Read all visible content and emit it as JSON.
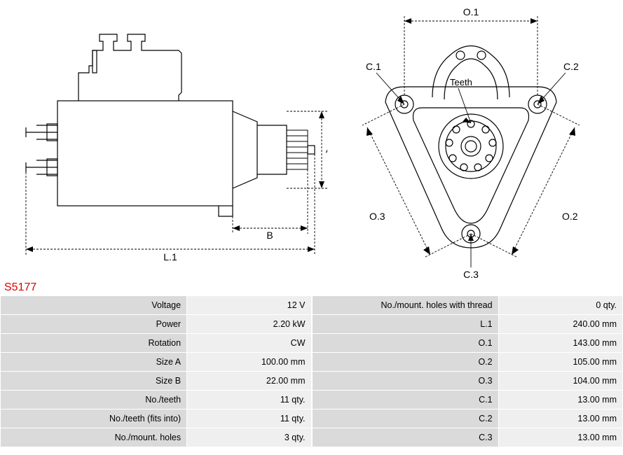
{
  "part_number": "S5177",
  "diagram_labels": {
    "A": "A",
    "B": "B",
    "L1": "L.1",
    "O1": "O.1",
    "O2": "O.2",
    "O3": "O.3",
    "C1": "C.1",
    "C2": "C.2",
    "C3": "C.3",
    "Teeth": "Teeth"
  },
  "specs_left": [
    {
      "label": "Voltage",
      "value": "12 V"
    },
    {
      "label": "Power",
      "value": "2.20 kW"
    },
    {
      "label": "Rotation",
      "value": "CW"
    },
    {
      "label": "Size A",
      "value": "100.00 mm"
    },
    {
      "label": "Size B",
      "value": "22.00 mm"
    },
    {
      "label": "No./teeth",
      "value": "11 qty."
    },
    {
      "label": "No./teeth (fits into)",
      "value": "11 qty."
    },
    {
      "label": "No./mount. holes",
      "value": "3 qty."
    }
  ],
  "specs_right": [
    {
      "label": "No./mount. holes with thread",
      "value": "0 qty."
    },
    {
      "label": "L.1",
      "value": "240.00 mm"
    },
    {
      "label": "O.1",
      "value": "143.00 mm"
    },
    {
      "label": "O.2",
      "value": "105.00 mm"
    },
    {
      "label": "O.3",
      "value": "104.00 mm"
    },
    {
      "label": "C.1",
      "value": "13.00 mm"
    },
    {
      "label": "C.2",
      "value": "13.00 mm"
    },
    {
      "label": "C.3",
      "value": "13.00 mm"
    }
  ],
  "style": {
    "line_color": "#000",
    "dim_dash": "3,2",
    "stroke_width": 1.2,
    "label_font_size": 14,
    "part_number_color": "#d00",
    "table_header_bg": "#dadada",
    "table_value_bg": "#efefef",
    "table_font_size": 12.5
  }
}
